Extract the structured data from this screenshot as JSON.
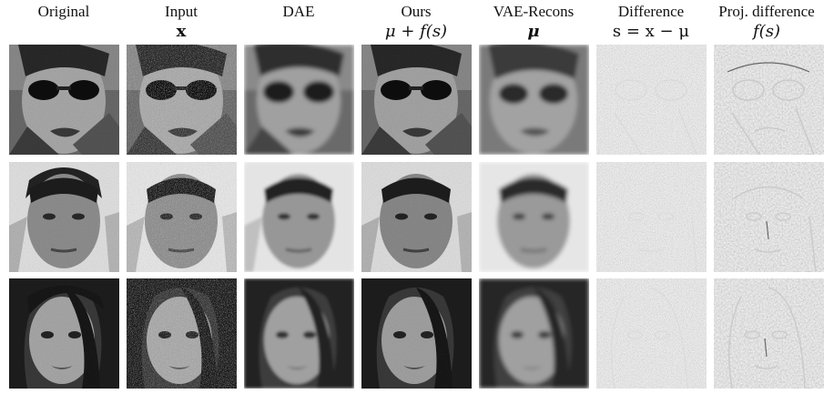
{
  "columns": [
    {
      "id": "original",
      "title": "Original",
      "subtitle": ""
    },
    {
      "id": "input",
      "title": "Input",
      "subtitle": "x"
    },
    {
      "id": "dae",
      "title": "DAE",
      "subtitle": ""
    },
    {
      "id": "ours",
      "title": "Ours",
      "subtitle": "μ + f(s)"
    },
    {
      "id": "vae",
      "title": "VAE-Recons",
      "subtitle": "μ"
    },
    {
      "id": "difference",
      "title": "Difference",
      "subtitle": "s = x − μ"
    },
    {
      "id": "projdiff",
      "title": "Proj. difference",
      "subtitle": "f(s)"
    }
  ],
  "rows": [
    {
      "id": "face-sunglasses"
    },
    {
      "id": "face-man"
    },
    {
      "id": "face-woman"
    }
  ]
}
